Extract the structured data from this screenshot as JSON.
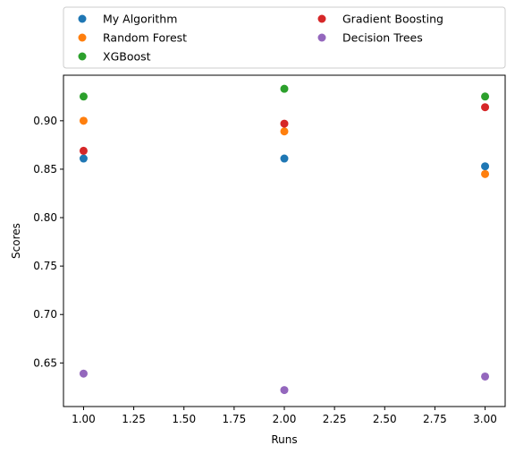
{
  "chart_data": {
    "type": "scatter",
    "xlabel": "Runs",
    "ylabel": "Scores",
    "xlim": [
      0.9,
      3.1
    ],
    "ylim": [
      0.605,
      0.947
    ],
    "grid": false,
    "legend_position": "top, above plot, two columns",
    "xticks": [
      1.0,
      1.25,
      1.5,
      1.75,
      2.0,
      2.25,
      2.5,
      2.75,
      3.0
    ],
    "xtick_labels": [
      "1.00",
      "1.25",
      "1.50",
      "1.75",
      "2.00",
      "2.25",
      "2.50",
      "2.75",
      "3.00"
    ],
    "yticks": [
      0.65,
      0.7,
      0.75,
      0.8,
      0.85,
      0.9
    ],
    "ytick_labels": [
      "0.65",
      "0.70",
      "0.75",
      "0.80",
      "0.85",
      "0.90"
    ],
    "series": [
      {
        "name": "My Algorithm",
        "color": "#1f77b4",
        "x": [
          1,
          2,
          3
        ],
        "y": [
          0.861,
          0.861,
          0.853
        ]
      },
      {
        "name": "Random Forest",
        "color": "#ff7f0e",
        "x": [
          1,
          2,
          3
        ],
        "y": [
          0.9,
          0.889,
          0.845
        ]
      },
      {
        "name": "XGBoost",
        "color": "#2ca02c",
        "x": [
          1,
          2,
          3
        ],
        "y": [
          0.925,
          0.933,
          0.925
        ]
      },
      {
        "name": "Gradient Boosting",
        "color": "#d62728",
        "x": [
          1,
          2,
          3
        ],
        "y": [
          0.869,
          0.897,
          0.914
        ]
      },
      {
        "name": "Decision Trees",
        "color": "#9467bd",
        "x": [
          1,
          2,
          3
        ],
        "y": [
          0.639,
          0.622,
          0.636
        ]
      }
    ]
  }
}
